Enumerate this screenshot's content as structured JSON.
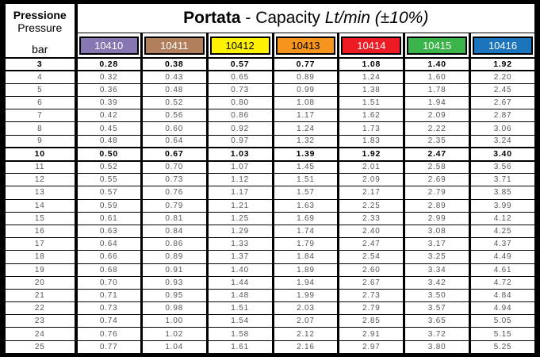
{
  "header": {
    "pressure_it": "Pressione",
    "pressure_en": "Pressure",
    "unit": "bar",
    "title_bold": "Portata",
    "title_mid": "- Capacity",
    "title_italic": "Lt/min (±10%)"
  },
  "columns": [
    {
      "label": "10410",
      "bg": "#8677B2",
      "fg": "#FFFFFF"
    },
    {
      "label": "10411",
      "bg": "#B27F5D",
      "fg": "#FFFFFF"
    },
    {
      "label": "10412",
      "bg": "#FFF200",
      "fg": "#000000"
    },
    {
      "label": "10413",
      "bg": "#F7941D",
      "fg": "#000000"
    },
    {
      "label": "10414",
      "bg": "#EC1B24",
      "fg": "#FFFFFF"
    },
    {
      "label": "10415",
      "bg": "#3BB54A",
      "fg": "#FFFFFF"
    },
    {
      "label": "10416",
      "bg": "#1C75BC",
      "fg": "#FFFFFF"
    }
  ],
  "chart_data": {
    "type": "table",
    "title": "Portata - Capacity Lt/min (±10%)",
    "columns": [
      "Pressure (bar)",
      "10410",
      "10411",
      "10412",
      "10413",
      "10414",
      "10415",
      "10416"
    ],
    "bold_rows": [
      3,
      10
    ],
    "rows": [
      [
        3,
        0.28,
        0.38,
        0.57,
        0.77,
        1.08,
        1.4,
        1.92
      ],
      [
        4,
        0.32,
        0.43,
        0.65,
        0.89,
        1.24,
        1.6,
        2.2
      ],
      [
        5,
        0.36,
        0.48,
        0.73,
        0.99,
        1.38,
        1.78,
        2.45
      ],
      [
        6,
        0.39,
        0.52,
        0.8,
        1.08,
        1.51,
        1.94,
        2.67
      ],
      [
        7,
        0.42,
        0.56,
        0.86,
        1.17,
        1.62,
        2.09,
        2.87
      ],
      [
        8,
        0.45,
        0.6,
        0.92,
        1.24,
        1.73,
        2.22,
        3.06
      ],
      [
        9,
        0.48,
        0.64,
        0.97,
        1.32,
        1.83,
        2.35,
        3.24
      ],
      [
        10,
        0.5,
        0.67,
        1.03,
        1.39,
        1.92,
        2.47,
        3.4
      ],
      [
        11,
        0.52,
        0.7,
        1.07,
        1.45,
        2.01,
        2.58,
        3.56
      ],
      [
        12,
        0.55,
        0.73,
        1.12,
        1.51,
        2.09,
        2.69,
        3.71
      ],
      [
        13,
        0.57,
        0.76,
        1.17,
        1.57,
        2.17,
        2.79,
        3.85
      ],
      [
        14,
        0.59,
        0.79,
        1.21,
        1.63,
        2.25,
        2.89,
        3.99
      ],
      [
        15,
        0.61,
        0.81,
        1.25,
        1.69,
        2.33,
        2.99,
        4.12
      ],
      [
        16,
        0.63,
        0.84,
        1.29,
        1.74,
        2.4,
        3.08,
        4.25
      ],
      [
        17,
        0.64,
        0.86,
        1.33,
        1.79,
        2.47,
        3.17,
        4.37
      ],
      [
        18,
        0.66,
        0.89,
        1.37,
        1.84,
        2.54,
        3.25,
        4.49
      ],
      [
        19,
        0.68,
        0.91,
        1.4,
        1.89,
        2.6,
        3.34,
        4.61
      ],
      [
        20,
        0.7,
        0.93,
        1.44,
        1.94,
        2.67,
        3.42,
        4.72
      ],
      [
        21,
        0.71,
        0.95,
        1.48,
        1.99,
        2.73,
        3.5,
        4.84
      ],
      [
        22,
        0.73,
        0.98,
        1.51,
        2.03,
        2.79,
        3.57,
        4.94
      ],
      [
        23,
        0.74,
        1.0,
        1.54,
        2.07,
        2.85,
        3.65,
        5.05
      ],
      [
        24,
        0.76,
        1.02,
        1.58,
        2.12,
        2.91,
        3.72,
        5.15
      ],
      [
        25,
        0.77,
        1.04,
        1.61,
        2.16,
        2.97,
        3.8,
        5.25
      ]
    ]
  }
}
